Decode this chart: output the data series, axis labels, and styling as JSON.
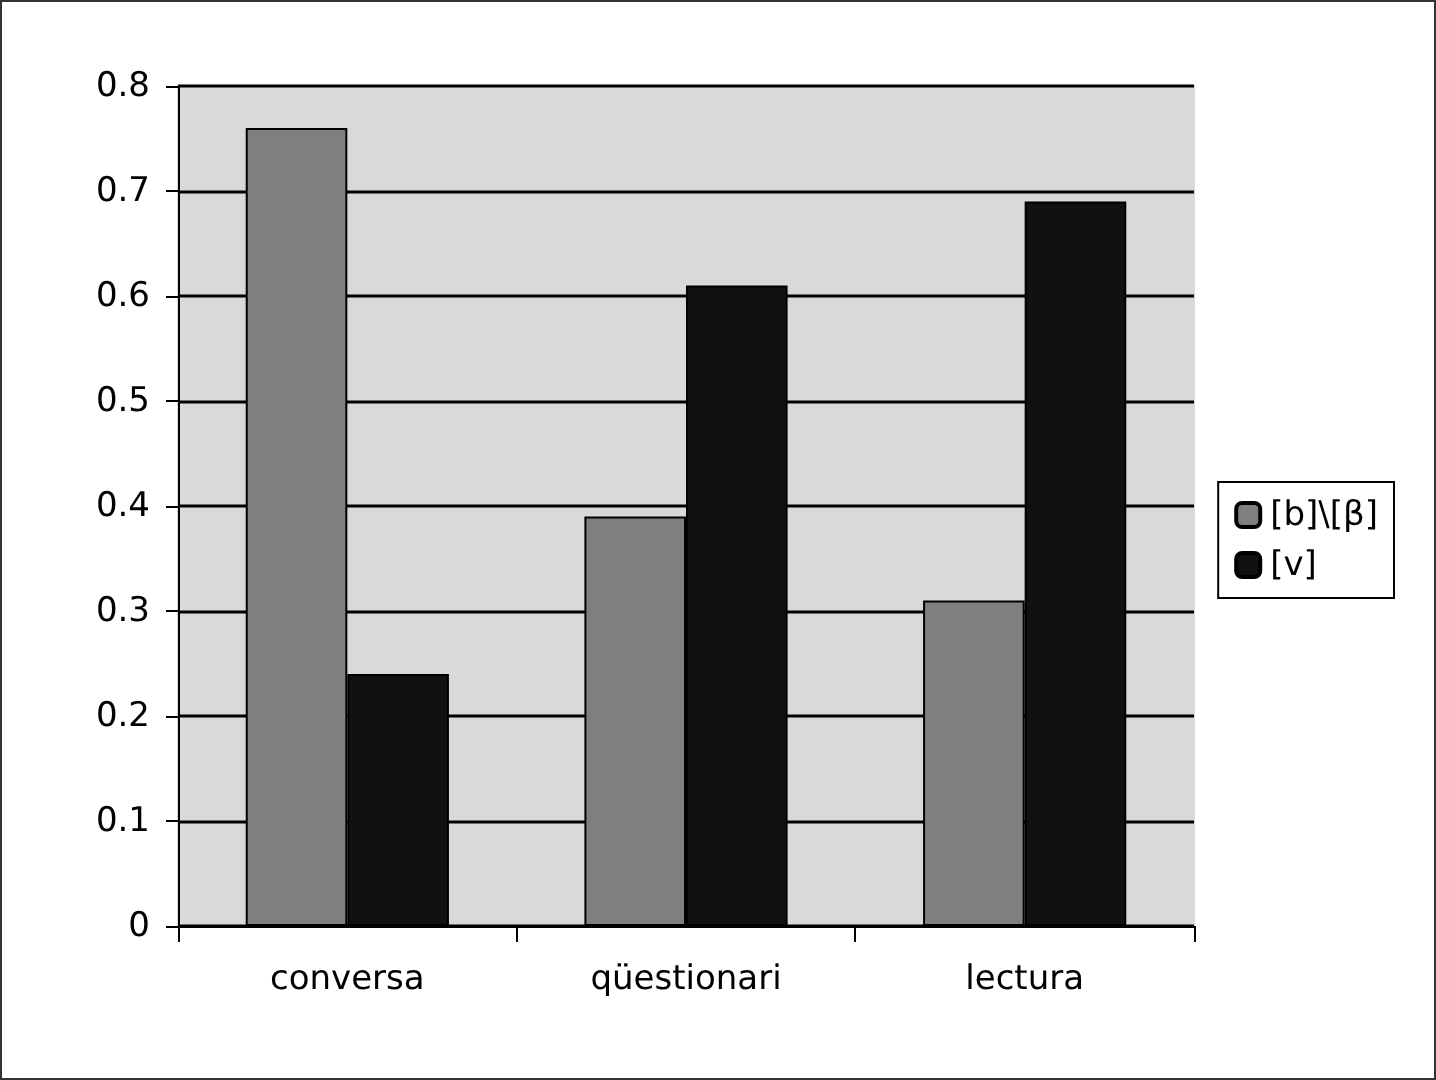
{
  "chart_data": {
    "type": "bar",
    "categories": [
      "conversa",
      "qüestionari",
      "lectura"
    ],
    "series": [
      {
        "name": "[b]\\[β]",
        "color": "#7f7f7f",
        "values": [
          0.76,
          0.39,
          0.31
        ]
      },
      {
        "name": "[v]",
        "color": "#111111",
        "values": [
          0.24,
          0.61,
          0.69
        ]
      }
    ],
    "ylim": [
      0,
      0.8
    ],
    "yticks": [
      0,
      0.1,
      0.2,
      0.3,
      0.4,
      0.5,
      0.6,
      0.7,
      0.8
    ],
    "grid": "y",
    "legend": "right"
  }
}
